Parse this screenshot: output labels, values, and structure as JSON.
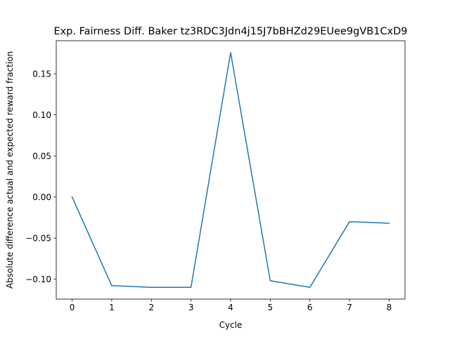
{
  "chart_data": {
    "type": "line",
    "title": "Exp. Fairness Diff. Baker tz3RDC3Jdn4j15J7bBHZd29EUee9gVB1CxD9",
    "xlabel": "Cycle",
    "ylabel": "Absolute difference actual and expected reward fraction",
    "x": [
      0,
      1,
      2,
      3,
      4,
      5,
      6,
      7,
      8
    ],
    "series": [
      {
        "values": [
          0.0,
          -0.108,
          -0.11,
          -0.11,
          0.176,
          -0.102,
          -0.11,
          -0.03,
          -0.032
        ],
        "color": "#1f77b4"
      }
    ],
    "xlim": [
      -0.4,
      8.4
    ],
    "ylim": [
      -0.1243,
      0.1903
    ],
    "xticks": [
      0,
      1,
      2,
      3,
      4,
      5,
      6,
      7,
      8
    ],
    "xtick_labels": [
      "0",
      "1",
      "2",
      "3",
      "4",
      "5",
      "6",
      "7",
      "8"
    ],
    "yticks": [
      -0.1,
      -0.05,
      0.0,
      0.05,
      0.1,
      0.15
    ],
    "ytick_labels": [
      "−0.10",
      "−0.05",
      "0.00",
      "0.05",
      "0.10",
      "0.15"
    ],
    "grid": false,
    "legend": "none"
  }
}
